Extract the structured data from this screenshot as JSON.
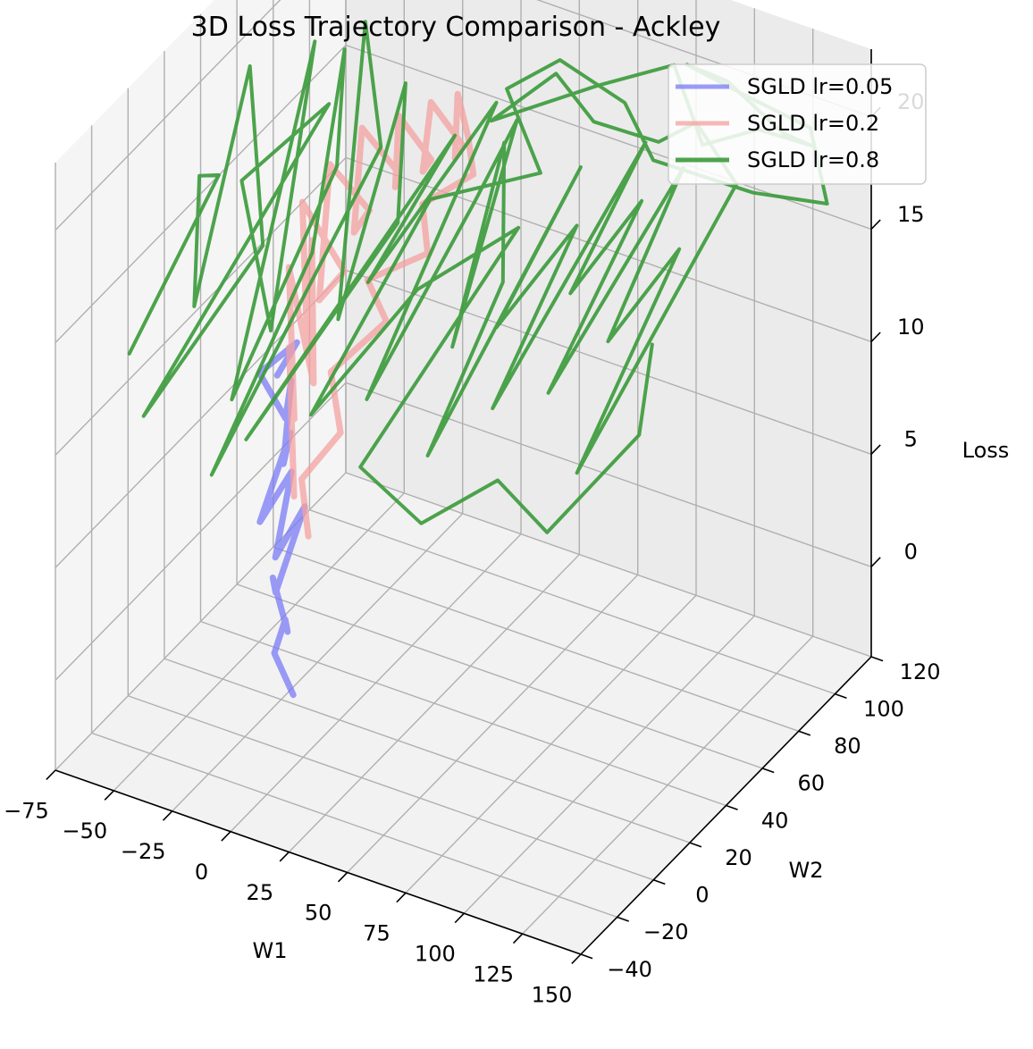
{
  "chart_data": {
    "type": "line",
    "projection": "3d",
    "title": "3D Loss Trajectory Comparison - Ackley",
    "xlabel": "W1",
    "ylabel": "W2",
    "zlabel": "Loss",
    "xlim": [
      -75,
      150
    ],
    "ylim": [
      -40,
      120
    ],
    "zlim": [
      -4,
      23
    ],
    "xticks": [
      "−75",
      "−50",
      "−25",
      "0",
      "25",
      "50",
      "75",
      "100",
      "125",
      "150"
    ],
    "yticks": [
      "−40",
      "−20",
      "0",
      "20",
      "40",
      "60",
      "80",
      "100",
      "120"
    ],
    "zticks": [
      "0",
      "5",
      "10",
      "15",
      "20"
    ],
    "grid": true,
    "legend_position": "upper-right",
    "series": [
      {
        "name": "SGLD lr=0.05",
        "color": "#7a7af5",
        "points": [
          [
            2,
            -8,
            -0.5
          ],
          [
            -3,
            -12,
            1.5
          ],
          [
            4,
            -15,
            3.5
          ],
          [
            -2,
            -6,
            2
          ],
          [
            1,
            -18,
            5.5
          ],
          [
            -4,
            -10,
            4
          ],
          [
            3,
            -3,
            7.5
          ],
          [
            -1,
            -14,
            6
          ],
          [
            2,
            -9,
            9.5
          ],
          [
            -3,
            -20,
            8
          ],
          [
            0,
            -7,
            11
          ],
          [
            4,
            -16,
            10.5
          ],
          [
            -2,
            -4,
            13
          ],
          [
            1,
            -11,
            12
          ],
          [
            -4,
            -19,
            14.5
          ],
          [
            2,
            -6,
            15
          ],
          [
            -1,
            -13,
            14
          ]
        ]
      },
      {
        "name": "SGLD lr=0.2",
        "color": "#f4a0a0",
        "points": [
          [
            0,
            -5,
            8
          ],
          [
            -6,
            0,
            14
          ],
          [
            4,
            -10,
            12
          ],
          [
            -10,
            5,
            17
          ],
          [
            6,
            -2,
            13
          ],
          [
            -4,
            10,
            18
          ],
          [
            8,
            -8,
            15
          ],
          [
            -12,
            15,
            19
          ],
          [
            2,
            20,
            16
          ],
          [
            10,
            -4,
            17
          ],
          [
            -8,
            25,
            20
          ],
          [
            5,
            30,
            18
          ],
          [
            14,
            10,
            19
          ],
          [
            -2,
            35,
            21
          ],
          [
            10,
            40,
            19
          ],
          [
            20,
            25,
            20
          ],
          [
            6,
            45,
            21
          ],
          [
            16,
            50,
            19
          ],
          [
            24,
            35,
            20
          ],
          [
            12,
            55,
            21
          ],
          [
            22,
            60,
            19
          ],
          [
            30,
            45,
            20
          ],
          [
            18,
            62,
            21
          ],
          [
            28,
            55,
            20
          ],
          [
            34,
            50,
            19
          ],
          [
            20,
            40,
            18
          ],
          [
            30,
            30,
            17
          ],
          [
            12,
            20,
            16
          ],
          [
            24,
            15,
            15
          ],
          [
            8,
            5,
            13
          ],
          [
            16,
            0,
            11
          ],
          [
            4,
            -6,
            9
          ],
          [
            10,
            -10,
            7
          ]
        ]
      },
      {
        "name": "SGLD lr=0.8",
        "color": "#3a9a3a",
        "points": [
          [
            -55,
            -25,
            14
          ],
          [
            -40,
            5,
            20
          ],
          [
            -60,
            20,
            18
          ],
          [
            -35,
            -15,
            16
          ],
          [
            -50,
            35,
            22
          ],
          [
            -25,
            10,
            17
          ],
          [
            -45,
            -30,
            12
          ],
          [
            -20,
            40,
            21
          ],
          [
            -38,
            15,
            19
          ],
          [
            -10,
            -5,
            15
          ],
          [
            -30,
            45,
            23
          ],
          [
            -15,
            -20,
            13
          ],
          [
            -5,
            25,
            20
          ],
          [
            -25,
            55,
            22
          ],
          [
            0,
            5,
            18
          ],
          [
            -12,
            -35,
            11
          ],
          [
            10,
            30,
            21
          ],
          [
            -20,
            60,
            23
          ],
          [
            15,
            0,
            16
          ],
          [
            5,
            50,
            22
          ],
          [
            25,
            20,
            19
          ],
          [
            -5,
            -25,
            12
          ],
          [
            30,
            45,
            21
          ],
          [
            20,
            10,
            17
          ],
          [
            40,
            55,
            22
          ],
          [
            35,
            -10,
            14
          ],
          [
            50,
            30,
            20
          ],
          [
            45,
            60,
            21
          ],
          [
            60,
            5,
            16
          ],
          [
            55,
            40,
            22
          ],
          [
            70,
            20,
            18
          ],
          [
            65,
            -15,
            13
          ],
          [
            80,
            50,
            21
          ],
          [
            75,
            10,
            17
          ],
          [
            90,
            35,
            20
          ],
          [
            85,
            -5,
            15
          ],
          [
            100,
            60,
            22
          ],
          [
            95,
            25,
            18
          ],
          [
            110,
            45,
            21
          ],
          [
            105,
            0,
            16
          ],
          [
            120,
            55,
            22
          ],
          [
            115,
            20,
            17
          ],
          [
            130,
            40,
            20
          ],
          [
            125,
            -10,
            14
          ],
          [
            135,
            65,
            21
          ],
          [
            110,
            75,
            22
          ],
          [
            90,
            80,
            20
          ],
          [
            70,
            70,
            21
          ],
          [
            50,
            75,
            22
          ],
          [
            30,
            65,
            20
          ],
          [
            60,
            85,
            21
          ],
          [
            85,
            95,
            22
          ],
          [
            105,
            85,
            20
          ],
          [
            125,
            90,
            21
          ],
          [
            140,
            100,
            20
          ],
          [
            120,
            110,
            19
          ],
          [
            100,
            105,
            21
          ],
          [
            75,
            115,
            20
          ],
          [
            95,
            120,
            19
          ],
          [
            120,
            125,
            18
          ],
          [
            135,
            115,
            16
          ],
          [
            115,
            100,
            17
          ],
          [
            80,
            90,
            18
          ],
          [
            60,
            100,
            19
          ],
          [
            40,
            90,
            21
          ],
          [
            25,
            80,
            20
          ],
          [
            55,
            60,
            19
          ],
          [
            35,
            25,
            20
          ],
          [
            15,
            -15,
            13
          ],
          [
            45,
            5,
            18
          ],
          [
            65,
            35,
            19
          ],
          [
            40,
            -20,
            12
          ],
          [
            70,
            -25,
            11
          ],
          [
            95,
            -15,
            13
          ],
          [
            120,
            -20,
            12
          ],
          [
            140,
            5,
            15
          ],
          [
            130,
            25,
            17
          ]
        ]
      }
    ]
  }
}
